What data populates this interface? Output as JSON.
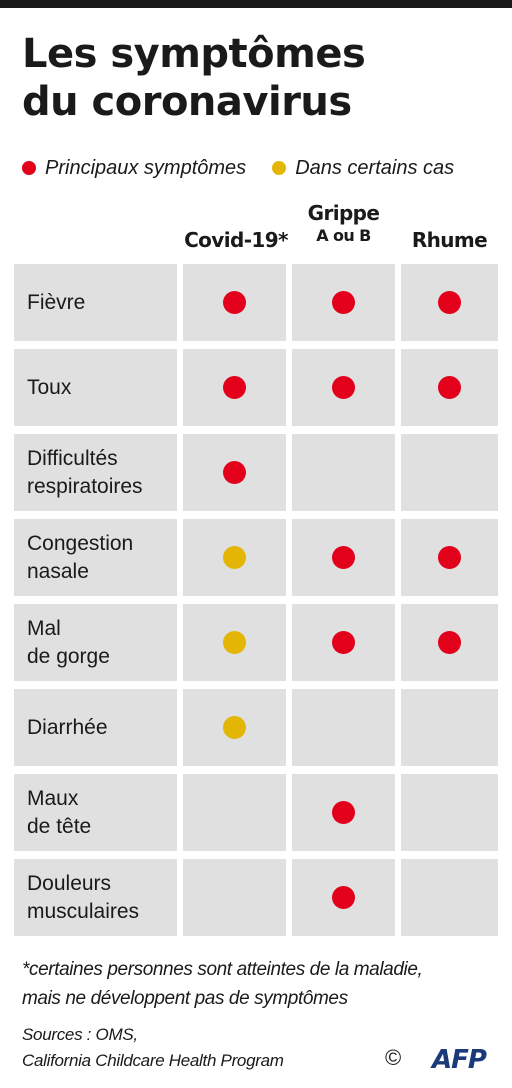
{
  "title": {
    "line1": "Les symptômes",
    "line2": "du coronavirus"
  },
  "legend": {
    "main": {
      "label": "Principaux symptômes",
      "color": "#e2001a"
    },
    "some": {
      "label": "Dans certains cas",
      "color": "#e3b505"
    }
  },
  "columns": {
    "covid": {
      "line1": "Covid-19*"
    },
    "flu": {
      "line1": "Grippe",
      "line2": "A ou B"
    },
    "cold": {
      "line1": "Rhume"
    }
  },
  "rows": [
    {
      "line1": "Fièvre",
      "line2": "",
      "covid": "main",
      "flu": "main",
      "cold": "main"
    },
    {
      "line1": "Toux",
      "line2": "",
      "covid": "main",
      "flu": "main",
      "cold": "main"
    },
    {
      "line1": "Difficultés",
      "line2": "respiratoires",
      "covid": "main",
      "flu": "",
      "cold": ""
    },
    {
      "line1": "Congestion",
      "line2": "nasale",
      "covid": "some",
      "flu": "main",
      "cold": "main"
    },
    {
      "line1": "Mal",
      "line2": "de gorge",
      "covid": "some",
      "flu": "main",
      "cold": "main"
    },
    {
      "line1": "Diarrhée",
      "line2": "",
      "covid": "some",
      "flu": "",
      "cold": ""
    },
    {
      "line1": "Maux",
      "line2": "de tête",
      "covid": "",
      "flu": "main",
      "cold": ""
    },
    {
      "line1": "Douleurs",
      "line2": "musculaires",
      "covid": "",
      "flu": "main",
      "cold": ""
    }
  ],
  "footnote": {
    "line1": "*certaines personnes sont atteintes de la maladie,",
    "line2": "mais ne développent pas de symptômes"
  },
  "sources": {
    "line1": "Sources : OMS,",
    "line2": "California Childcare Health Program"
  },
  "credit": {
    "copyright": "©",
    "logo": "AFP",
    "logo_color": "#1a3a7a"
  }
}
